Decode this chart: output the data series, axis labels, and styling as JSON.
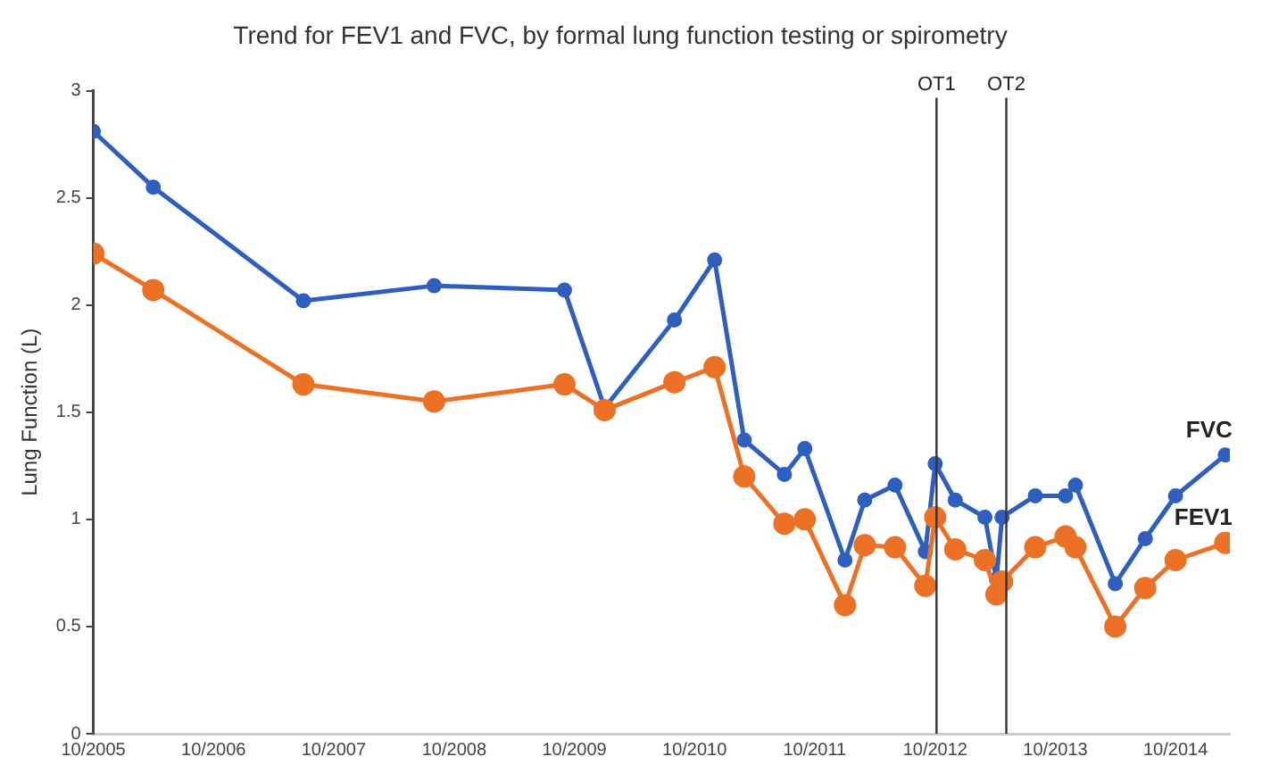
{
  "chart_data": {
    "type": "line",
    "title": "Trend for FEV1 and FVC, by formal lung function testing or spirometry",
    "ylabel": "Lung Function (L)",
    "x": [
      "2005-10",
      "2006-04",
      "2007-07",
      "2008-08",
      "2009-09",
      "2010-01",
      "2010-08",
      "2010-12",
      "2011-03",
      "2011-07",
      "2011-09",
      "2012-01",
      "2012-03",
      "2012-06",
      "2012-09",
      "2012-10",
      "2012-12",
      "2013-03",
      "2013-04-05",
      "2013-04-22",
      "2013-08",
      "2013-11",
      "2013-12",
      "2014-04",
      "2014-07",
      "2014-10",
      "2015-03"
    ],
    "series": [
      {
        "name": "FVC",
        "color": "#2e5fc0",
        "values": [
          2.81,
          2.55,
          2.02,
          2.09,
          2.07,
          1.52,
          1.93,
          2.21,
          1.37,
          1.21,
          1.33,
          0.81,
          1.09,
          1.16,
          0.85,
          1.26,
          1.09,
          1.01,
          0.72,
          1.01,
          1.11,
          1.11,
          1.16,
          0.7,
          0.91,
          1.11,
          1.3
        ]
      },
      {
        "name": "FEV1",
        "color": "#ed7125",
        "values": [
          2.24,
          2.07,
          1.63,
          1.55,
          1.63,
          1.51,
          1.64,
          1.71,
          1.2,
          0.98,
          1.0,
          0.6,
          0.88,
          0.87,
          0.69,
          1.01,
          0.86,
          0.81,
          0.65,
          0.71,
          0.87,
          0.92,
          0.87,
          0.5,
          0.68,
          0.81,
          0.89
        ]
      }
    ],
    "xlim": [
      "2005-10",
      "2015-03-15"
    ],
    "xticks": [
      {
        "value": "2005-10",
        "label": "10/2005"
      },
      {
        "value": "2006-10",
        "label": "10/2006"
      },
      {
        "value": "2007-10",
        "label": "10/2007"
      },
      {
        "value": "2008-10",
        "label": "10/2008"
      },
      {
        "value": "2009-10",
        "label": "10/2009"
      },
      {
        "value": "2010-10",
        "label": "10/2010"
      },
      {
        "value": "2011-10",
        "label": "10/2011"
      },
      {
        "value": "2012-10",
        "label": "10/2012"
      },
      {
        "value": "2013-10",
        "label": "10/2013"
      },
      {
        "value": "2014-10",
        "label": "10/2014"
      }
    ],
    "ylim": [
      0,
      3
    ],
    "yticks": [
      0,
      0.5,
      1,
      1.5,
      2,
      2.5,
      3
    ],
    "ref_lines": [
      {
        "axis": "x",
        "value": "2012-10-05",
        "label": "OT1",
        "color": "#333333"
      },
      {
        "axis": "x",
        "value": "2013-05-05",
        "label": "OT2",
        "color": "#333333"
      }
    ],
    "grid": false,
    "legend": false,
    "marker": "circle",
    "line_style": "solid"
  }
}
